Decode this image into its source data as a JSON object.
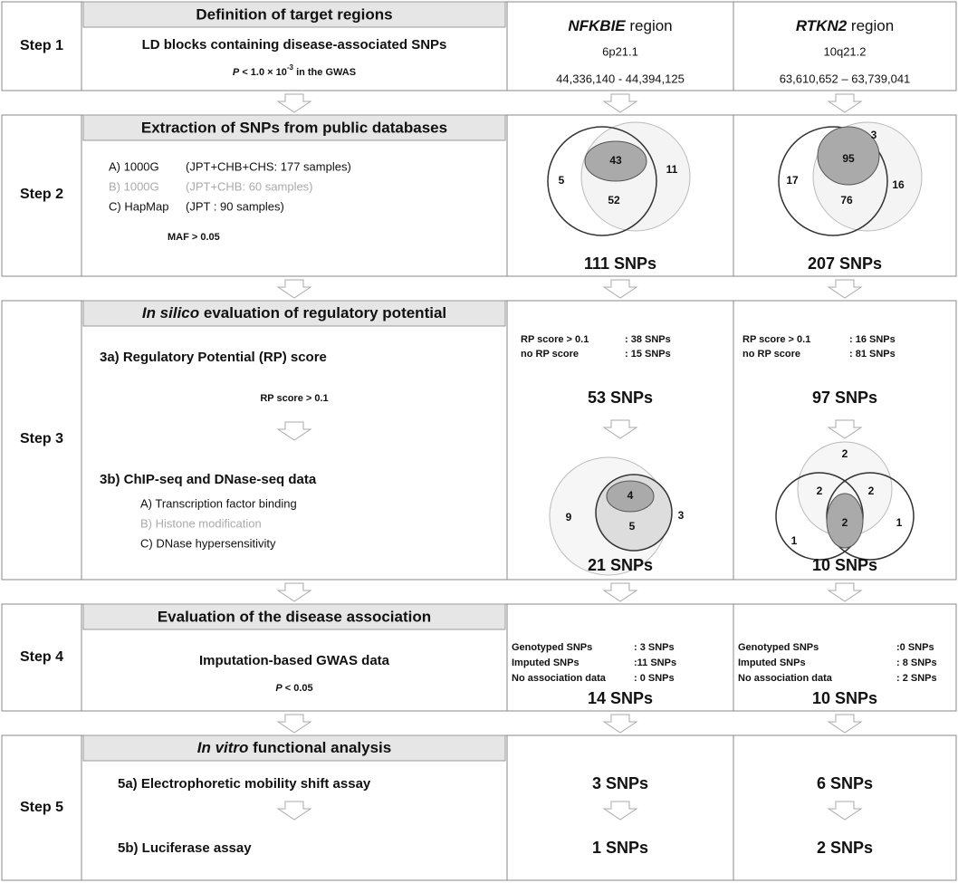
{
  "header": {
    "nfkbie_gene": "NFKBIE",
    "nfkbie_suffix": "region",
    "rtkn2_gene": "RTKN2",
    "rtkn2_suffix": "region"
  },
  "step1": {
    "label": "Step 1",
    "title": "Definition of target regions",
    "method": "LD blocks containing disease-associated SNPs",
    "threshold": {
      "p": "P",
      "rel": "< 1.0 × 10",
      "exp": "-3",
      "rest": "in the GWAS"
    },
    "nfkbie": {
      "band": "6p21.1",
      "range": "44,336,140 - 44,394,125"
    },
    "rtkn2": {
      "band": "10q21.2",
      "range": "63,610,652 – 63,739,041"
    }
  },
  "step2": {
    "label": "Step 2",
    "title": "Extraction of SNPs from public databases",
    "sources": [
      [
        "A) 1000G",
        "(JPT+CHB+CHS: 177 samples)"
      ],
      [
        "B) 1000G",
        "(JPT+CHB: 60 samples)"
      ],
      [
        "C) HapMap",
        "(JPT : 90 samples)"
      ]
    ],
    "threshold": "MAF > 0.05",
    "nfkbie": {
      "venn": [
        43,
        52,
        5,
        11
      ],
      "total": "111 SNPs"
    },
    "rtkn2": {
      "venn": [
        95,
        76,
        17,
        16,
        3
      ],
      "total": "207 SNPs"
    }
  },
  "step3": {
    "label": "Step 3",
    "title_italic": "In silico",
    "title_rest": "evaluation of regulatory potential",
    "sub_a": "3a)  Regulatory Potential (RP) score",
    "threshold": "RP score > 0.1",
    "sub_b": "3b)  ChIP-seq and DNase-seq data",
    "data_types": [
      "A) Transcription factor binding",
      "B) Histone modification",
      "C) DNase hypersensitivity"
    ],
    "nfkbie": {
      "rp": [
        [
          "RP score > 0.1",
          ": 38 SNPs"
        ],
        [
          "no RP score",
          ": 15 SNPs"
        ]
      ],
      "total_a": "53 SNPs",
      "venn": [
        4,
        5,
        9,
        3
      ],
      "total_b": "21 SNPs"
    },
    "rtkn2": {
      "rp": [
        [
          "RP score > 0.1",
          ": 16 SNPs"
        ],
        [
          "no RP score",
          ": 81 SNPs"
        ]
      ],
      "total_a": "97 SNPs",
      "venn": [
        2,
        2,
        2,
        2,
        1,
        1
      ],
      "total_b": "10 SNPs"
    }
  },
  "step4": {
    "label": "Step 4",
    "title": "Evaluation of the disease association",
    "method": "Imputation-based GWAS data",
    "threshold": {
      "p": "P",
      "rest": "< 0.05"
    },
    "nfkbie": {
      "rows": [
        [
          "Genotyped SNPs",
          ": 3 SNPs"
        ],
        [
          "Imputed SNPs",
          ":11 SNPs"
        ],
        [
          "No association data",
          ": 0 SNPs"
        ]
      ],
      "total": "14 SNPs"
    },
    "rtkn2": {
      "rows": [
        [
          "Genotyped SNPs",
          ":0 SNPs"
        ],
        [
          "Imputed SNPs",
          ": 8 SNPs"
        ],
        [
          "No association data",
          ": 2 SNPs"
        ]
      ],
      "total": "10 SNPs"
    }
  },
  "step5": {
    "label": "Step 5",
    "title_italic": "In vitro",
    "title_rest": "functional analysis",
    "sub_a": "5a) Electrophoretic mobility shift assay",
    "sub_b": "5b) Luciferase assay",
    "nfkbie": [
      "3 SNPs",
      "1 SNPs"
    ],
    "rtkn2": [
      "6 SNPs",
      "2 SNPs"
    ]
  }
}
